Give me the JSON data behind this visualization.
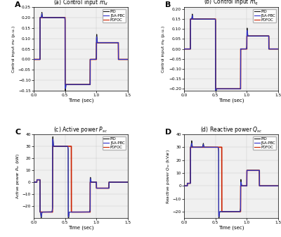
{
  "panels": [
    {
      "label": "A",
      "title": "(a) Control input $m_d$",
      "ylabel": "Control input $m_d$ (p.u.)",
      "xlabel": "Time (sec)",
      "xlim": [
        0,
        1.5
      ],
      "ylim": [
        -0.15,
        0.25
      ],
      "yticks": [
        -0.15,
        -0.1,
        -0.05,
        0.0,
        0.05,
        0.1,
        0.15,
        0.2,
        0.25
      ],
      "xticks": [
        0,
        0.5,
        1.0,
        1.5
      ]
    },
    {
      "label": "B",
      "title": "(b) Control input $m_q$",
      "ylabel": "Control input $m_q$ (p.u.)",
      "xlabel": "Time (sec)",
      "xlim": [
        0,
        1.5
      ],
      "ylim": [
        -0.21,
        0.21
      ],
      "yticks": [
        -0.2,
        -0.15,
        -0.1,
        -0.05,
        0.0,
        0.05,
        0.1,
        0.15,
        0.2
      ],
      "xticks": [
        0,
        0.5,
        1.0,
        1.5
      ]
    },
    {
      "label": "C",
      "title": "(c) Active power $P_{sc}$",
      "ylabel": "Active power $P_{sc}$ (kW)",
      "xlabel": "Time (sec)",
      "xlim": [
        0,
        1.5
      ],
      "ylim": [
        -30,
        40
      ],
      "yticks": [
        -20,
        -10,
        0,
        10,
        20,
        30,
        40
      ],
      "xticks": [
        0,
        0.5,
        1.0,
        1.5
      ]
    },
    {
      "label": "D",
      "title": "(d) Reactive power $Q_{sc}$",
      "ylabel": "Reactive power $Q_{sc}$ (kVar)",
      "xlabel": "Time (sec)",
      "xlim": [
        0,
        1.5
      ],
      "ylim": [
        -25,
        40
      ],
      "yticks": [
        -20,
        -10,
        0,
        10,
        20,
        30,
        40
      ],
      "xticks": [
        0,
        0.5,
        1.0,
        1.5
      ]
    }
  ],
  "colors": {
    "PID": "#1a1a1a",
    "JSA-PBC": "#3333cc",
    "POFOC": "#cc2200"
  },
  "bg_color": "#f0f0f0",
  "line_width": 0.8
}
